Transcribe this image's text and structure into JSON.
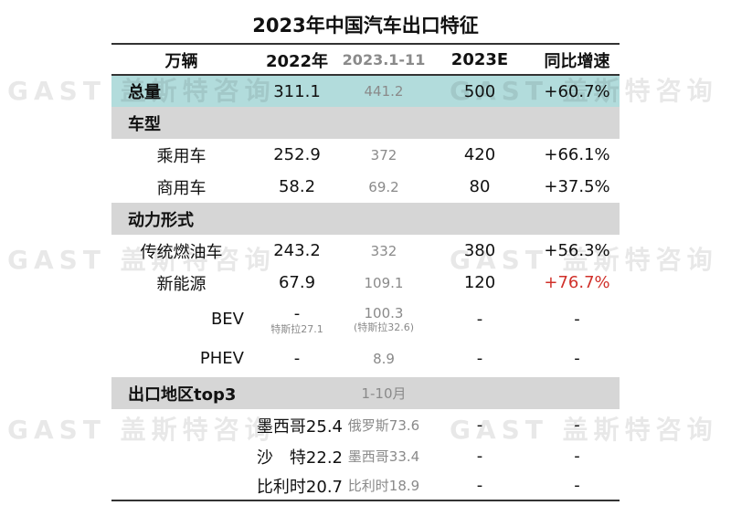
{
  "title": "2023年中国汽车出口特征",
  "watermark": "GAST 盖斯特咨询",
  "header": [
    "万辆",
    "2022年",
    "2023.1-11",
    "2023E",
    "同比增速"
  ],
  "rows": [
    {
      "kind": "teal",
      "label": "总量",
      "label_style": "bold-left",
      "v2022": "311.1",
      "v2023": "441.2",
      "e2023": "500",
      "growth": "+60.7%"
    },
    {
      "kind": "gray",
      "label": "车型",
      "label_style": "bold-left"
    },
    {
      "label": "乘用车",
      "v2022": "252.9",
      "v2023": "372",
      "e2023": "420",
      "growth": "+66.1%"
    },
    {
      "label": "商用车",
      "v2022": "58.2",
      "v2023": "69.2",
      "e2023": "80",
      "growth": "+37.5%"
    },
    {
      "kind": "gray",
      "label": "动力形式",
      "label_style": "bold-left"
    },
    {
      "label": "传统燃油车",
      "v2022": "243.2",
      "v2023": "332",
      "e2023": "380",
      "growth": "+56.3%"
    },
    {
      "label": "新能源",
      "v2022": "67.9",
      "v2023": "109.1",
      "e2023": "120",
      "growth": "+76.7%",
      "growth_color": "#d0302a"
    },
    {
      "label": "BEV",
      "label_style": "right",
      "v2022": "-",
      "v2022_sub": "特斯拉27.1",
      "v2023": "100.3",
      "v2023_sub": "(特斯拉32.6)",
      "e2023": "-",
      "growth": "-"
    },
    {
      "label": "PHEV",
      "label_style": "right",
      "v2022": "-",
      "v2023": "8.9",
      "e2023": "-",
      "growth": "-"
    },
    {
      "kind": "gray",
      "label": "出口地区top3",
      "label_style": "bold-left",
      "v2023": "1-10月"
    },
    {
      "label": "",
      "v2022": "墨西哥25.4",
      "v2023": "俄罗斯73.6",
      "e2023": "-",
      "growth": "-"
    },
    {
      "label": "",
      "v2022": "沙　特22.2",
      "v2023": "墨西哥33.4",
      "e2023": "-",
      "growth": "-"
    },
    {
      "label": "",
      "v2022": "比利时20.7",
      "v2023": "比利时18.9",
      "e2023": "-",
      "growth": "-"
    }
  ]
}
